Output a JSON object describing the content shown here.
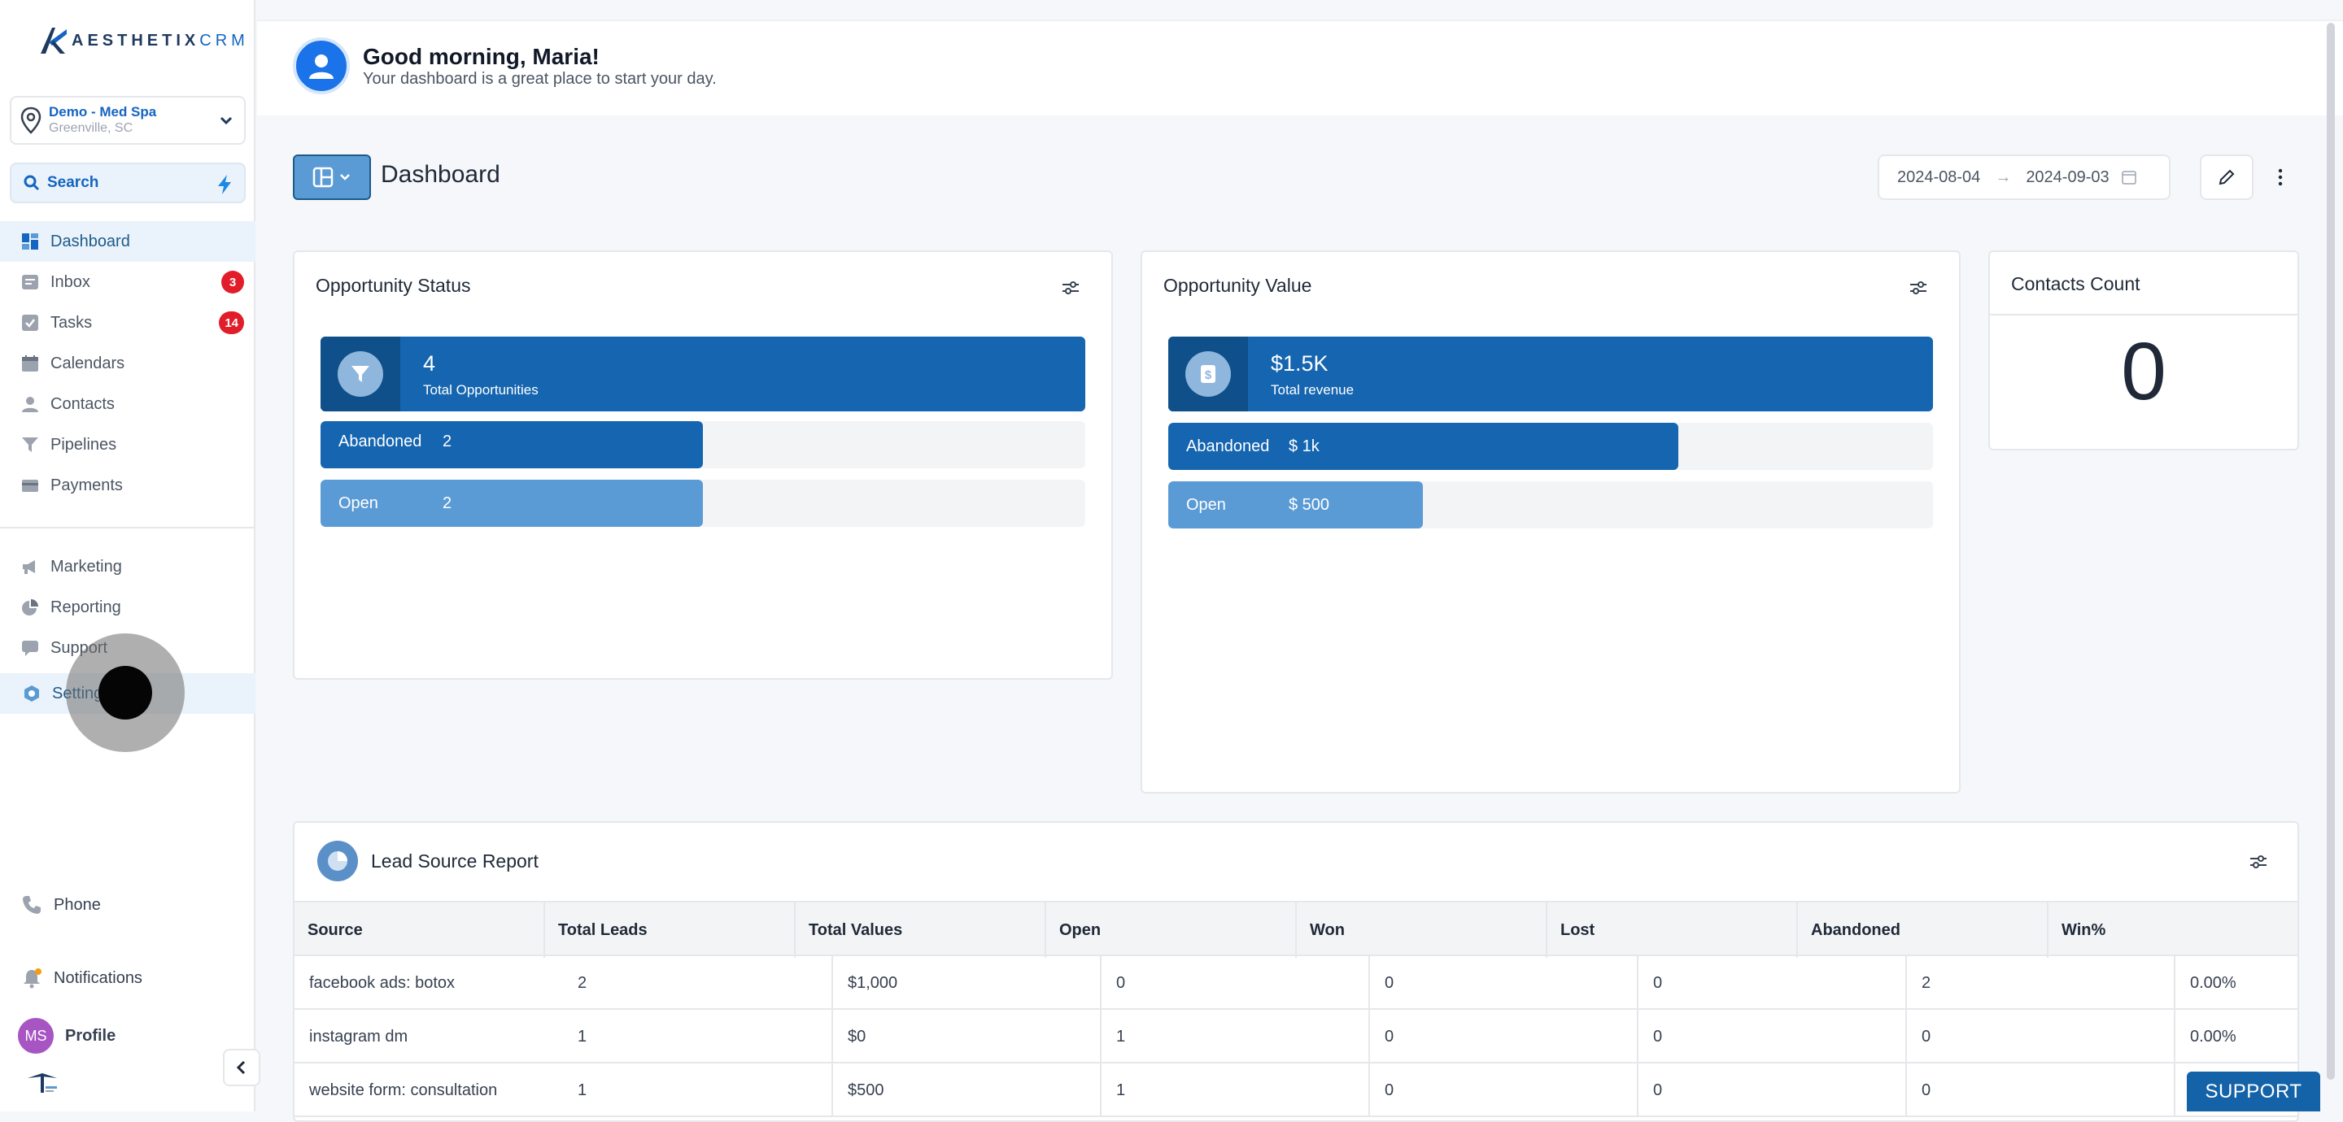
{
  "app": {
    "logo_brand": "AESTHETIX",
    "logo_crm": "CRM"
  },
  "location": {
    "name": "Demo - Med Spa",
    "city": "Greenville, SC"
  },
  "search": {
    "label": "Search"
  },
  "nav": {
    "items": [
      {
        "label": "Dashboard",
        "icon": "dashboard-icon",
        "active": true
      },
      {
        "label": "Inbox",
        "icon": "inbox-icon",
        "badge": "3"
      },
      {
        "label": "Tasks",
        "icon": "tasks-icon",
        "badge": "14"
      },
      {
        "label": "Calendars",
        "icon": "calendar-icon"
      },
      {
        "label": "Contacts",
        "icon": "contact-icon"
      },
      {
        "label": "Pipelines",
        "icon": "filter-icon"
      },
      {
        "label": "Payments",
        "icon": "card-icon"
      }
    ],
    "items2": [
      {
        "label": "Marketing",
        "icon": "megaphone-icon"
      },
      {
        "label": "Reporting",
        "icon": "pie-icon"
      },
      {
        "label": "Support",
        "icon": "chat-icon"
      },
      {
        "label": "Settings",
        "icon": "settings-icon",
        "active": true
      }
    ]
  },
  "bottom": {
    "phone": "Phone",
    "notifications": "Notifications",
    "profile": "Profile",
    "avatar_initials": "MS"
  },
  "header": {
    "greeting": "Good morning, Maria!",
    "subtitle": "Your dashboard is a great place to start your day."
  },
  "dashboard": {
    "title": "Dashboard",
    "date_start": "2024-08-04",
    "date_end": "2024-09-03"
  },
  "opportunity_status": {
    "title": "Opportunity Status",
    "total_value": "4",
    "total_label": "Total Opportunities",
    "rows": [
      {
        "label": "Abandoned",
        "value": "2",
        "fraction": 0.5,
        "color": "#1565b0"
      },
      {
        "label": "Open",
        "value": "2",
        "fraction": 0.5,
        "color": "#5b9bd5"
      }
    ]
  },
  "opportunity_value": {
    "title": "Opportunity Value",
    "total_value": "$1.5K",
    "total_label": "Total revenue",
    "rows": [
      {
        "label": "Abandoned",
        "value": "$ 1k",
        "fraction": 0.667,
        "color": "#1565b0"
      },
      {
        "label": "Open",
        "value": "$ 500",
        "fraction": 0.333,
        "color": "#5b9bd5"
      }
    ]
  },
  "contacts_count": {
    "title": "Contacts Count",
    "value": "0"
  },
  "lead_source": {
    "title": "Lead Source Report",
    "columns": [
      "Source",
      "Total Leads",
      "Total Values",
      "Open",
      "Won",
      "Lost",
      "Abandoned",
      "Win%"
    ],
    "rows": [
      [
        "facebook ads: botox",
        "2",
        "$1,000",
        "0",
        "0",
        "0",
        "2",
        "0.00%"
      ],
      [
        "instagram dm",
        "1",
        "$0",
        "1",
        "0",
        "0",
        "0",
        "0.00%"
      ],
      [
        "website form: consultation",
        "1",
        "$500",
        "1",
        "0",
        "0",
        "0",
        ""
      ]
    ]
  },
  "support_button": "SUPPORT"
}
